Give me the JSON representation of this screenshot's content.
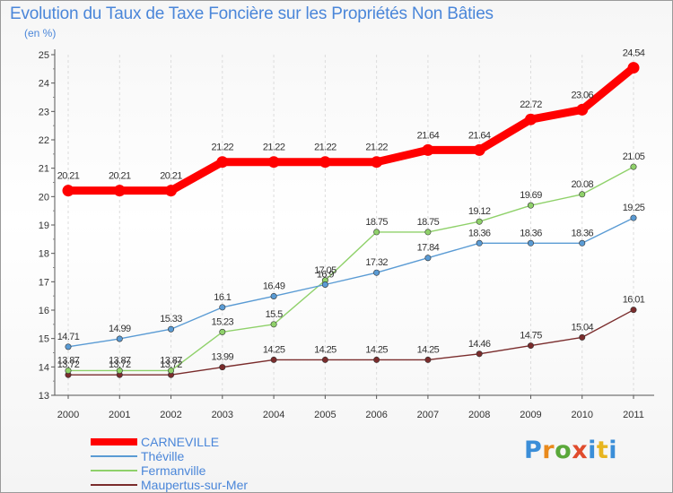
{
  "title": "Evolution du Taux de Taxe Foncière sur les Propriétés Non Bâties",
  "unit": "(en %)",
  "brand": "Proxiti",
  "chart_data": {
    "type": "line",
    "title": "Evolution du Taux de Taxe Foncière sur les Propriétés Non Bâties",
    "ylabel": "(en %)",
    "xlabel": "",
    "x": [
      "2000",
      "2001",
      "2002",
      "2003",
      "2004",
      "2005",
      "2006",
      "2007",
      "2008",
      "2009",
      "2010",
      "2011"
    ],
    "ylim": [
      13,
      25
    ],
    "yticks": [
      "13",
      "14",
      "15",
      "16",
      "17",
      "18",
      "19",
      "20",
      "21",
      "22",
      "23",
      "24",
      "25"
    ],
    "grid": "vertical",
    "legend": "bottom-left",
    "series": [
      {
        "name": "CARNEVILLE",
        "color": "#ff0000",
        "values": [
          20.21,
          20.21,
          20.21,
          21.22,
          21.22,
          21.22,
          21.22,
          21.64,
          21.64,
          22.72,
          23.06,
          24.54
        ],
        "labels": [
          "20.21",
          "20.21",
          "20.21",
          "21.22",
          "21.22",
          "21.22",
          "21.22",
          "21.64",
          "21.64",
          "22.72",
          "23.06",
          "24.54"
        ]
      },
      {
        "name": "Théville",
        "color": "#5a9bd4",
        "values": [
          14.71,
          14.99,
          15.33,
          16.1,
          16.49,
          16.9,
          17.32,
          17.84,
          18.36,
          18.36,
          18.36,
          19.25
        ],
        "labels": [
          "14.71",
          "14.99",
          "15.33",
          "16.1",
          "16.49",
          "16.9",
          "17.32",
          "17.84",
          "18.36",
          "18.36",
          "18.36",
          "19.25"
        ]
      },
      {
        "name": "Fermanville",
        "color": "#8fd16a",
        "values": [
          13.87,
          13.87,
          13.87,
          15.23,
          15.5,
          17.05,
          18.75,
          18.75,
          19.12,
          19.69,
          20.08,
          21.05
        ],
        "labels": [
          "13.87",
          "13.87",
          "13.87",
          "15.23",
          "15.5",
          "17.05",
          "18.75",
          "18.75",
          "19.12",
          "19.69",
          "20.08",
          "21.05"
        ]
      },
      {
        "name": "Maupertus-sur-Mer",
        "color": "#7a2c2c",
        "values": [
          13.72,
          13.72,
          13.72,
          13.99,
          14.25,
          14.25,
          14.25,
          14.25,
          14.46,
          14.75,
          15.04,
          16.01
        ],
        "labels": [
          "13.72",
          "13.72",
          "13.72",
          "13.99",
          "14.25",
          "14.25",
          "14.25",
          "14.25",
          "14.46",
          "14.75",
          "15.04",
          "16.01"
        ]
      }
    ]
  }
}
